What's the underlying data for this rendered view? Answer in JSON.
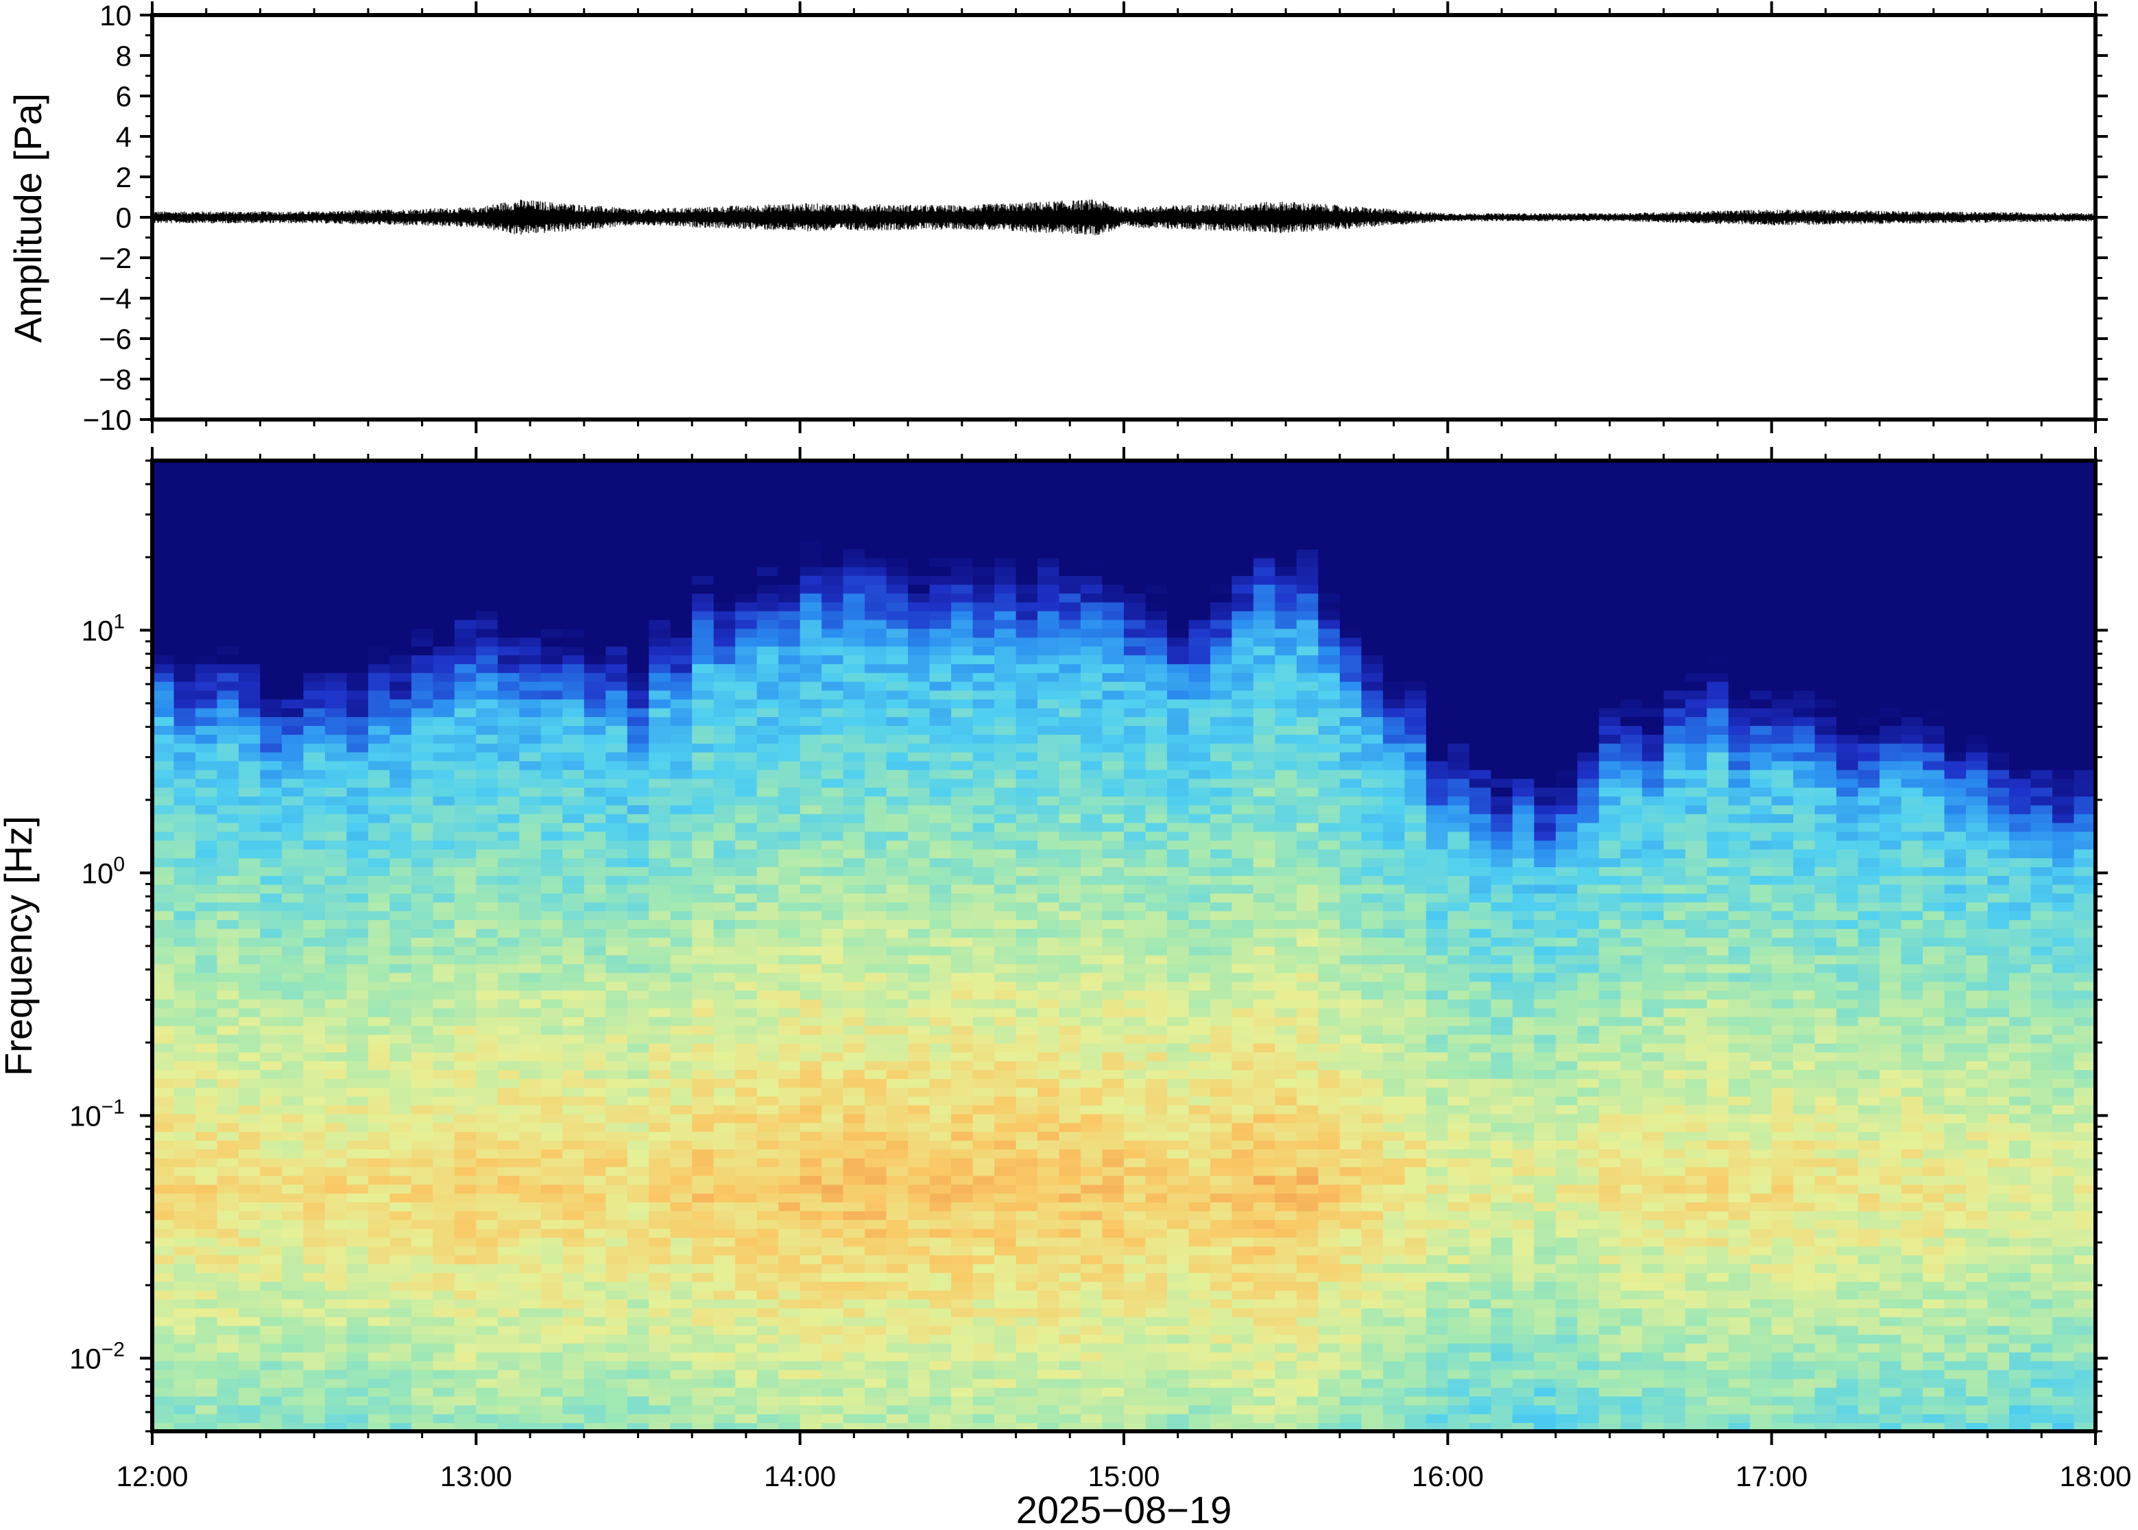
{
  "chart_data": [
    {
      "type": "line",
      "title": "",
      "ylabel": "Amplitude [Pa]",
      "xlabel": "",
      "ylim": [
        -10,
        10
      ],
      "yticks": [
        "10",
        "8",
        "6",
        "4",
        "2",
        "0",
        "−2",
        "−4",
        "−6",
        "−8",
        "−10"
      ],
      "ytick_values": [
        10,
        8,
        6,
        4,
        2,
        0,
        -2,
        -4,
        -6,
        -8,
        -10
      ],
      "x_range": [
        "12:00",
        "18:00"
      ],
      "series": [
        {
          "x": [
            "12:00",
            "12:30",
            "13:00",
            "13:08",
            "13:30",
            "14:00",
            "14:30",
            "14:55",
            "15:00",
            "15:30",
            "16:00",
            "16:30",
            "17:00",
            "17:30",
            "18:00"
          ],
          "values_envelope": [
            0.3,
            0.3,
            0.5,
            0.9,
            0.4,
            0.7,
            0.6,
            0.9,
            0.5,
            0.8,
            0.2,
            0.2,
            0.4,
            0.3,
            0.2
          ]
        }
      ],
      "grid": false
    },
    {
      "type": "heatmap",
      "title": "",
      "ylabel": "Frequency [Hz]",
      "xlabel": "2025−08−19",
      "yscale": "log",
      "ylim": [
        0.005,
        50
      ],
      "yticks": [
        {
          "base": "10",
          "exp": "1",
          "value": 10
        },
        {
          "base": "10",
          "exp": "0",
          "value": 1
        },
        {
          "base": "10",
          "exp": "−1",
          "value": 0.1
        },
        {
          "base": "10",
          "exp": "−2",
          "value": 0.01
        }
      ],
      "xticks": [
        "12:00",
        "13:00",
        "14:00",
        "15:00",
        "16:00",
        "17:00",
        "18:00"
      ],
      "colormap": "jet",
      "colors": [
        "#0a0a78",
        "#1e32c8",
        "#2a8cf0",
        "#50d0f0",
        "#a0e8b4",
        "#e6f096",
        "#fac864",
        "#f08c46"
      ],
      "grid": false
    }
  ],
  "xaxis": {
    "date_label": "2025−08−19",
    "ticks": [
      "12:00",
      "13:00",
      "14:00",
      "15:00",
      "16:00",
      "17:00",
      "18:00"
    ]
  },
  "colors": {
    "trace": "#000000",
    "frame": "#000000",
    "background": "#ffffff"
  }
}
